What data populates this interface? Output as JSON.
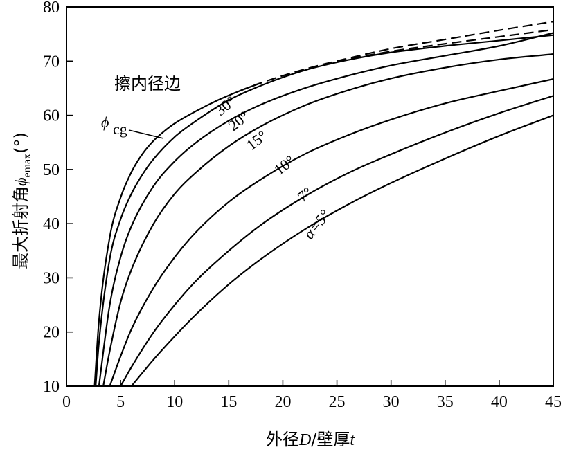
{
  "chart_data": {
    "type": "line",
    "xlabel_parts": [
      "外径",
      "D",
      "/壁厚",
      "t"
    ],
    "ylabel_parts": [
      "最大折射角",
      "ϕ",
      "emax",
      "(°)"
    ],
    "annotation": "擦内径边",
    "xlim": [
      0,
      45
    ],
    "ylim": [
      10,
      80
    ],
    "xticks": [
      0,
      5,
      10,
      15,
      20,
      25,
      30,
      35,
      40,
      45
    ],
    "yticks": [
      10,
      20,
      30,
      40,
      50,
      60,
      70,
      80
    ],
    "series": [
      {
        "name": "ϕcg",
        "label_main": "ϕ",
        "label_sub": "cg",
        "style": "solid",
        "x": [
          2.6,
          3,
          4,
          5,
          6,
          7,
          8,
          9,
          10,
          12,
          14,
          16,
          18
        ],
        "y": [
          10,
          22,
          37.5,
          44.8,
          49.5,
          52.8,
          55.2,
          57,
          58.5,
          60.8,
          62.8,
          64.5,
          66
        ]
      },
      {
        "name": "30°",
        "label": "30°",
        "style": "solid",
        "x": [
          2.7,
          3,
          4,
          5,
          6,
          7,
          8,
          10,
          12,
          15,
          18,
          22,
          26,
          30,
          35,
          40,
          45
        ],
        "y": [
          10,
          18,
          33.5,
          40.8,
          45.5,
          49,
          51.8,
          56,
          59,
          62.8,
          65.5,
          68.3,
          70.2,
          71.6,
          72.8,
          73.8,
          74.8
        ]
      },
      {
        "name": "20°",
        "label": "20°",
        "style": "solid",
        "x": [
          3,
          4,
          5,
          6,
          8,
          10,
          12,
          15,
          18,
          22,
          26,
          30,
          35,
          40,
          45
        ],
        "y": [
          10,
          25,
          33.8,
          39.5,
          46.8,
          51.5,
          55,
          59,
          62,
          65,
          67.3,
          69.2,
          71,
          72.8,
          75.2
        ]
      },
      {
        "name": "15°",
        "label": "15°",
        "style": "solid",
        "x": [
          3.4,
          4,
          5,
          6,
          8,
          10,
          12,
          15,
          18,
          22,
          26,
          30,
          35,
          40,
          45
        ],
        "y": [
          10,
          16.5,
          25.5,
          31.5,
          39.8,
          45.5,
          49.5,
          54.3,
          58,
          61.8,
          64.6,
          66.8,
          68.8,
          70.3,
          71.3
        ]
      },
      {
        "name": "10°",
        "label": "10°",
        "style": "solid",
        "x": [
          4,
          5,
          6,
          8,
          10,
          12,
          15,
          18,
          22,
          26,
          30,
          35,
          40,
          45
        ],
        "y": [
          10,
          15.5,
          20.5,
          28,
          33.8,
          38.5,
          44,
          48.2,
          52.8,
          56.3,
          59.2,
          62.2,
          64.5,
          66.7
        ]
      },
      {
        "name": "7°",
        "label": "7°",
        "style": "solid",
        "x": [
          5,
          6,
          8,
          10,
          12,
          15,
          18,
          22,
          26,
          30,
          35,
          40,
          45
        ],
        "y": [
          10,
          13.5,
          19.8,
          25,
          29.5,
          35,
          39.8,
          45,
          49.3,
          52.8,
          56.8,
          60.4,
          63.6
        ]
      },
      {
        "name": "α=5°",
        "label": "α=5°",
        "style": "solid",
        "x": [
          6,
          8,
          10,
          12,
          15,
          18,
          22,
          26,
          30,
          35,
          40,
          45
        ],
        "y": [
          10,
          14.8,
          19.2,
          23.3,
          28.8,
          33.5,
          38.9,
          43.5,
          47.5,
          52,
          56.2,
          60
        ]
      },
      {
        "name": "dashed-1",
        "style": "dashed",
        "x": [
          16,
          18,
          22,
          26,
          30,
          35,
          40,
          45
        ],
        "y": [
          64.5,
          66,
          68.5,
          70.5,
          72.3,
          74,
          75.7,
          77.3
        ]
      },
      {
        "name": "dashed-2",
        "style": "dashed",
        "x": [
          25,
          30,
          35,
          40,
          45
        ],
        "y": [
          70,
          71.8,
          73.2,
          74.5,
          75.8
        ]
      }
    ]
  }
}
